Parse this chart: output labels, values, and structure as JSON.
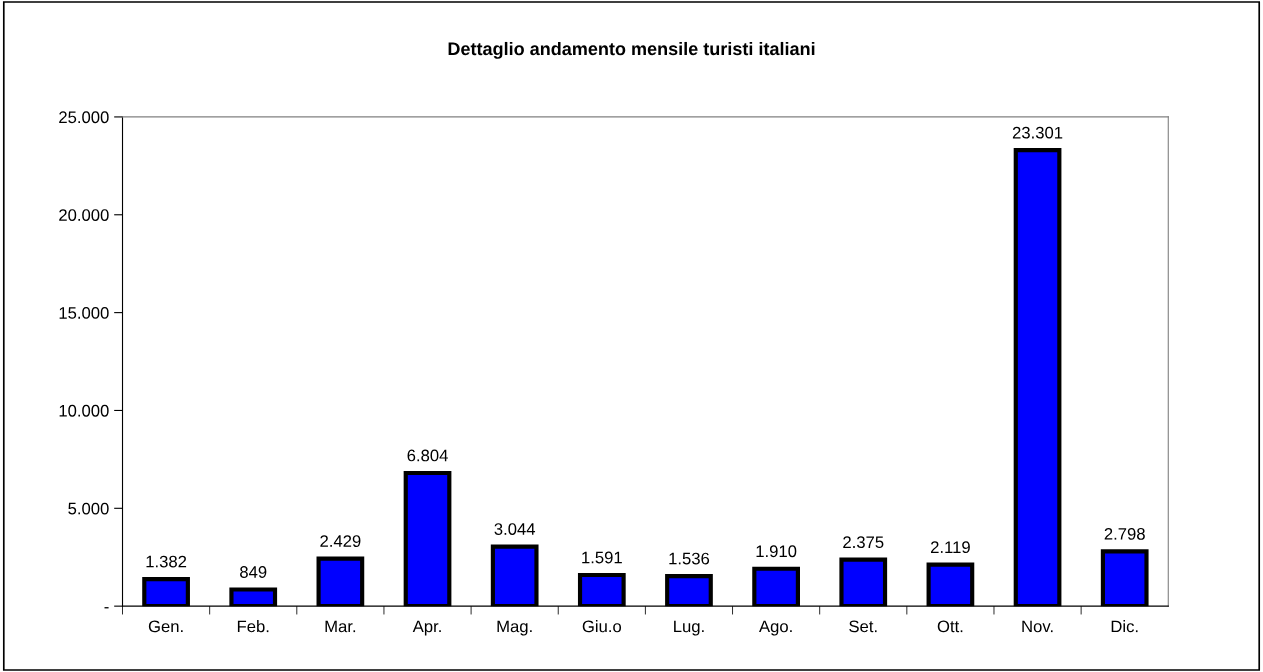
{
  "chart_data": {
    "type": "bar",
    "title": "Dettaglio andamento mensile turisti italiani",
    "categories": [
      "Gen.",
      "Feb.",
      "Mar.",
      "Apr.",
      "Mag.",
      "Giu.o",
      "Lug.",
      "Ago.",
      "Set.",
      "Ott.",
      "Nov.",
      "Dic."
    ],
    "values": [
      1382,
      849,
      2429,
      6804,
      3044,
      1591,
      1536,
      1910,
      2375,
      2119,
      23301,
      2798
    ],
    "value_labels": [
      "1.382",
      "849",
      "2.429",
      "6.804",
      "3.044",
      "1.591",
      "1.536",
      "1.910",
      "2.375",
      "2.119",
      "23.301",
      "2.798"
    ],
    "color": "#0000ff",
    "ylim": [
      0,
      25000
    ],
    "yticks": [
      {
        "value": 0,
        "label": "-"
      },
      {
        "value": 5000,
        "label": "5.000"
      },
      {
        "value": 10000,
        "label": "10.000"
      },
      {
        "value": 15000,
        "label": "15.000"
      },
      {
        "value": 20000,
        "label": "20.000"
      },
      {
        "value": 25000,
        "label": "25.000"
      }
    ],
    "grid": false,
    "legend": false
  }
}
